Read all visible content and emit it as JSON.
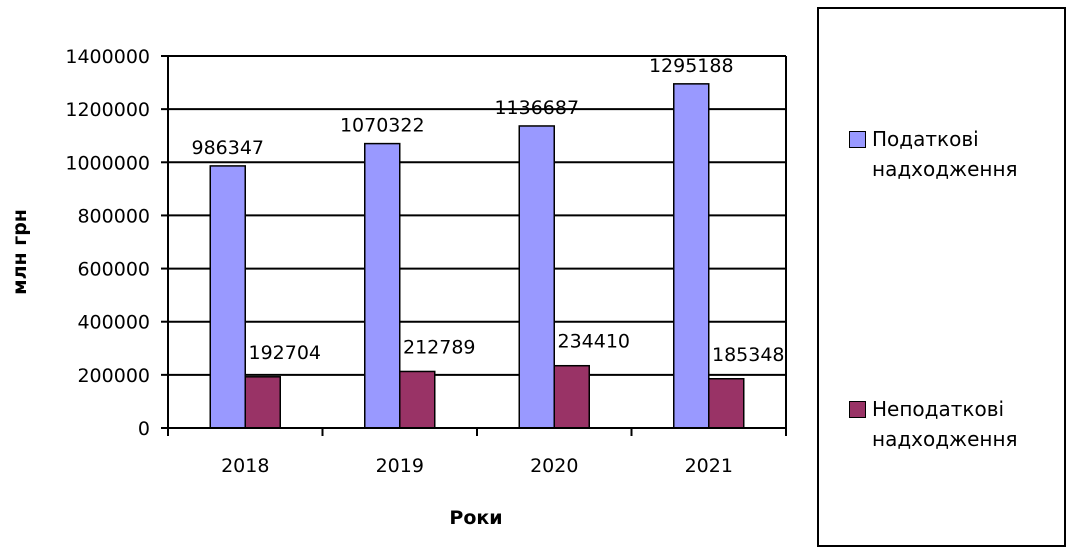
{
  "chart_data": {
    "type": "bar",
    "categories": [
      "2018",
      "2019",
      "2020",
      "2021"
    ],
    "series": [
      {
        "name": "Податкові надходження",
        "values": [
          986347,
          1070322,
          1136687,
          1295188
        ]
      },
      {
        "name": "Неподаткові надходження",
        "values": [
          192704,
          212789,
          234410,
          185348
        ]
      }
    ],
    "data_labels": [
      [
        "986347",
        "1070322",
        "1136687",
        "1295188"
      ],
      [
        "192704",
        "212789",
        "234410",
        "185348"
      ]
    ],
    "title": "",
    "xlabel": "Роки",
    "ylabel": "млн грн",
    "ylim": [
      0,
      1400000
    ],
    "yticks": [
      "0",
      "200000",
      "400000",
      "600000",
      "800000",
      "1000000",
      "1200000",
      "1400000"
    ],
    "grid": true,
    "legend_position": "right"
  },
  "legend": {
    "items": [
      {
        "label": "Податкові\nнадходження"
      },
      {
        "label": "Неподаткові\nнадходження"
      }
    ]
  },
  "colors": {
    "series": [
      "#9999ff",
      "#993366"
    ],
    "grid": "#000000"
  }
}
